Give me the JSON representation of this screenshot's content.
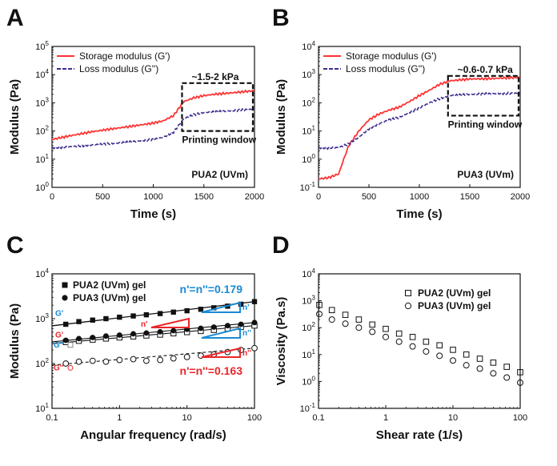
{
  "chart_data": [
    {
      "panel": "A",
      "type": "line",
      "xlabel": "Time (s)",
      "ylabel": "Modulus (Pa)",
      "xlim": [
        0,
        2000
      ],
      "ylim_log10": [
        0,
        5
      ],
      "xticks": [
        "0",
        "500",
        "1000",
        "1500",
        "2000"
      ],
      "yticks": [
        [
          "10",
          "0"
        ],
        [
          "10",
          "1"
        ],
        [
          "10",
          "2"
        ],
        [
          "10",
          "3"
        ],
        [
          "10",
          "4"
        ],
        [
          "10",
          "5"
        ]
      ],
      "legend": [
        "Storage modulus (G')",
        "Loss modulus (G'')"
      ],
      "series": [
        {
          "name": "Storage modulus (G')",
          "color": "#ff3333",
          "style": "solid",
          "x": [
            0,
            200,
            400,
            600,
            800,
            1000,
            1100,
            1200,
            1300,
            1400,
            1500,
            1600,
            1800,
            2000
          ],
          "y": [
            50,
            70,
            95,
            120,
            150,
            190,
            230,
            350,
            1100,
            1500,
            1800,
            2000,
            2300,
            2700
          ]
        },
        {
          "name": "Loss modulus (G'')",
          "color": "#3d2b8c",
          "style": "dashed",
          "x": [
            0,
            200,
            400,
            600,
            800,
            1000,
            1100,
            1200,
            1300,
            1400,
            1500,
            1600,
            1800,
            2000
          ],
          "y": [
            25,
            28,
            32,
            36,
            42,
            50,
            60,
            90,
            270,
            380,
            450,
            480,
            530,
            600
          ]
        }
      ],
      "annotations": {
        "window_label": "Printing window",
        "range_label": "~1.5-2 kPa",
        "sample_label": "PUA2 (UVm)"
      },
      "window": {
        "x": [
          1300,
          2000
        ],
        "y": [
          100,
          5000
        ]
      }
    },
    {
      "panel": "B",
      "type": "line",
      "xlabel": "Time (s)",
      "ylabel": "Modulus (Pa)",
      "xlim": [
        0,
        2000
      ],
      "ylim_log10": [
        -1,
        4
      ],
      "xticks": [
        "0",
        "500",
        "1000",
        "1500",
        "2000"
      ],
      "yticks": [
        [
          "10",
          "-1"
        ],
        [
          "10",
          "0"
        ],
        [
          "10",
          "1"
        ],
        [
          "10",
          "2"
        ],
        [
          "10",
          "3"
        ],
        [
          "10",
          "4"
        ]
      ],
      "legend": [
        "Storage modulus (G')",
        "Loss modulus (G'')"
      ],
      "series": [
        {
          "name": "Storage modulus (G')",
          "color": "#ff3333",
          "style": "solid",
          "x": [
            0,
            100,
            200,
            250,
            300,
            400,
            500,
            600,
            700,
            800,
            900,
            1000,
            1100,
            1200,
            1300,
            1500,
            1700,
            2000
          ],
          "y": [
            0.2,
            0.22,
            0.3,
            1.0,
            3,
            10,
            25,
            40,
            55,
            70,
            110,
            180,
            280,
            450,
            600,
            700,
            720,
            800
          ]
        },
        {
          "name": "Loss modulus (G'')",
          "color": "#3d2b8c",
          "style": "dashed",
          "x": [
            0,
            100,
            200,
            300,
            400,
            500,
            600,
            700,
            800,
            900,
            1000,
            1100,
            1200,
            1300,
            1500,
            1700,
            2000
          ],
          "y": [
            2.5,
            2.5,
            2.6,
            3.5,
            6,
            12,
            18,
            25,
            30,
            45,
            65,
            100,
            140,
            180,
            200,
            210,
            220
          ]
        }
      ],
      "annotations": {
        "window_label": "Printing window",
        "range_label": "~0.6-0.7 kPa",
        "sample_label": "PUA3 (UVm)"
      },
      "window": {
        "x": [
          1300,
          2000
        ],
        "y": [
          35,
          900
        ]
      }
    },
    {
      "panel": "C",
      "type": "scatter",
      "xlabel": "Angular frequency (rad/s)",
      "ylabel": "Modulus (Pa)",
      "xlim_log10": [
        -1,
        2
      ],
      "ylim_log10": [
        1,
        4
      ],
      "xticks": [
        "0.1",
        "1",
        "10",
        "100"
      ],
      "yticks": [
        [
          "10",
          "1"
        ],
        [
          "10",
          "2"
        ],
        [
          "10",
          "3"
        ],
        [
          "10",
          "4"
        ]
      ],
      "legend": [
        "PUA2 (UVm) gel",
        "PUA3 (UVm) gel"
      ],
      "x": [
        0.16,
        0.25,
        0.4,
        0.63,
        1.0,
        1.6,
        2.5,
        4.0,
        6.3,
        10,
        16,
        25,
        40,
        63,
        100
      ],
      "series": [
        {
          "name": "PUA2 G'",
          "marker": "filled-square",
          "y": [
            750,
            860,
            930,
            1000,
            1080,
            1150,
            1220,
            1300,
            1400,
            1500,
            1620,
            1750,
            1900,
            2100,
            2400
          ]
        },
        {
          "name": "PUA2 G''",
          "marker": "open-square",
          "y": [
            300,
            320,
            340,
            360,
            380,
            400,
            420,
            440,
            470,
            500,
            530,
            560,
            600,
            650,
            700
          ]
        },
        {
          "name": "PUA3 G'",
          "marker": "filled-circle",
          "y": [
            330,
            360,
            380,
            410,
            430,
            460,
            480,
            510,
            540,
            580,
            610,
            650,
            700,
            750,
            820
          ]
        },
        {
          "name": "PUA3 G''",
          "marker": "open-circle",
          "y": [
            100,
            110,
            115,
            110,
            120,
            125,
            115,
            120,
            130,
            140,
            150,
            160,
            180,
            200,
            220
          ]
        }
      ],
      "labels": {
        "g_prime": "G'",
        "g_double_prime": "G''",
        "n_prime": "n'",
        "n_double_prime": "n''",
        "slope_blue": "n'=n''=0.179",
        "slope_red": "n'=n''=0.163"
      }
    },
    {
      "panel": "D",
      "type": "scatter",
      "xlabel": "Shear rate (1/s)",
      "ylabel": "Viscosity (Pa.s)",
      "xlim_log10": [
        -1,
        2
      ],
      "ylim_log10": [
        -1,
        4
      ],
      "xticks": [
        "0.1",
        "1",
        "10",
        "100"
      ],
      "yticks": [
        [
          "10",
          "-1"
        ],
        [
          "10",
          "0"
        ],
        [
          "10",
          "1"
        ],
        [
          "10",
          "2"
        ],
        [
          "10",
          "3"
        ],
        [
          "10",
          "4"
        ]
      ],
      "legend": [
        "PUA2 (UVm) gel",
        "PUA3 (UVm) gel"
      ],
      "x": [
        0.1,
        0.158,
        0.251,
        0.398,
        0.631,
        1.0,
        1.58,
        2.51,
        3.98,
        6.31,
        10,
        15.8,
        25.1,
        39.8,
        63.1,
        100
      ],
      "series": [
        {
          "name": "PUA2 (UVm) gel",
          "marker": "open-square",
          "y": [
            700,
            450,
            300,
            200,
            130,
            90,
            60,
            45,
            30,
            22,
            15,
            10,
            7,
            5,
            3.5,
            2.2
          ]
        },
        {
          "name": "PUA3 (UVm) gel",
          "marker": "open-circle",
          "y": [
            320,
            200,
            140,
            100,
            70,
            45,
            30,
            20,
            13,
            9,
            6,
            4,
            3,
            2,
            1.4,
            0.9
          ]
        }
      ]
    }
  ],
  "panel_letters": [
    "A",
    "B",
    "C",
    "D"
  ],
  "colors": {
    "storage": "#ff3333",
    "loss": "#3d2b8c",
    "blue": "#1a8ad4",
    "red": "#e8262b",
    "ink": "#111111"
  }
}
